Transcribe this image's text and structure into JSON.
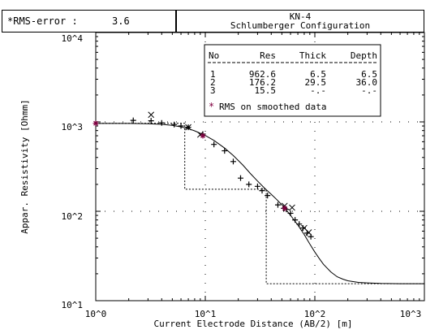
{
  "header": {
    "rms_label": "*RMS-error :",
    "rms_value": "3.6",
    "title_line1": "KN-4",
    "title_line2": "Schlumberger Configuration"
  },
  "chart_data": {
    "type": "scatter",
    "xscale": "log",
    "yscale": "log",
    "xlim": [
      1,
      1000
    ],
    "ylim": [
      10,
      10000
    ],
    "xlabel": "Current Electrode Distance (AB/2) [m]",
    "ylabel": "Appar. Resistivity [Ohmm]",
    "x_ticks": [
      "10^0",
      "10^1",
      "10^2",
      "10^3"
    ],
    "y_ticks": [
      "10^1",
      "10^2",
      "10^3",
      "10^4"
    ],
    "grid": "dotted",
    "layer_table": {
      "headers": [
        "No",
        "Res",
        "Thick",
        "Depth"
      ],
      "rows": [
        [
          "1",
          "962.6",
          "6.5",
          "6.5"
        ],
        [
          "2",
          "176.2",
          "29.5",
          "36.0"
        ],
        [
          "3",
          "15.5",
          "-.-",
          "-.-"
        ]
      ],
      "note_marker": "*",
      "note": "RMS on smoothed data"
    },
    "model_curve": {
      "x": [
        1,
        2,
        3,
        4,
        5,
        6,
        7,
        8,
        10,
        12,
        15,
        18,
        22,
        26,
        30,
        35,
        40,
        45,
        50,
        55,
        60,
        70,
        80,
        90,
        100,
        110,
        120,
        140,
        160,
        180,
        200,
        250,
        300,
        400,
        600,
        1000
      ],
      "y": [
        962,
        961,
        955,
        940,
        915,
        880,
        840,
        795,
        705,
        620,
        510,
        420,
        330,
        262,
        218,
        180,
        155,
        135,
        118,
        103,
        90,
        70,
        55,
        43,
        35,
        29.5,
        25.5,
        21,
        18.5,
        17.4,
        16.7,
        16.0,
        15.8,
        15.6,
        15.5,
        15.5
      ]
    },
    "layer_model": {
      "x": [
        1,
        6.5,
        6.5,
        36,
        36,
        1000
      ],
      "y": [
        962.6,
        962.6,
        176.2,
        176.2,
        15.5,
        15.5
      ]
    },
    "observed_plus": {
      "x": [
        2.2,
        3.2,
        4.0,
        5.2,
        6.0,
        7.0,
        9.5,
        12,
        15,
        18,
        21,
        25,
        30,
        33,
        37,
        46,
        52,
        55,
        60,
        66,
        72,
        78,
        85,
        92
      ],
      "y": [
        1040,
        1030,
        975,
        935,
        900,
        870,
        730,
        560,
        475,
        360,
        235,
        200,
        190,
        170,
        150,
        118,
        108,
        105,
        95,
        80,
        72,
        65,
        57,
        52
      ]
    },
    "observed_x": {
      "x": [
        3.2,
        7.0,
        9.0,
        53,
        62,
        80,
        88
      ],
      "y": [
        1200,
        870,
        720,
        115,
        110,
        65,
        58
      ]
    },
    "observed_smoothed": {
      "x": [
        1.0,
        9.5,
        53
      ],
      "y": [
        965,
        700,
        108
      ]
    }
  }
}
